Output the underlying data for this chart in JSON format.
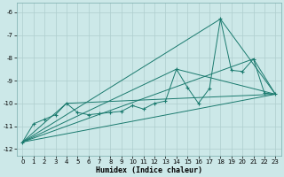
{
  "title": "",
  "xlabel": "Humidex (Indice chaleur)",
  "background_color": "#cce8e8",
  "grid_color": "#b0d4d4",
  "line_color": "#1a7a6e",
  "xlim": [
    -0.5,
    23.5
  ],
  "ylim": [
    -12.3,
    -5.6
  ],
  "yticks": [
    -12,
    -11,
    -10,
    -9,
    -8,
    -7,
    -6
  ],
  "xticks": [
    0,
    1,
    2,
    3,
    4,
    5,
    6,
    7,
    8,
    9,
    10,
    11,
    12,
    13,
    14,
    15,
    16,
    17,
    18,
    19,
    20,
    21,
    22,
    23
  ],
  "main_series": [
    [
      0,
      -11.7
    ],
    [
      1,
      -10.9
    ],
    [
      2,
      -10.7
    ],
    [
      3,
      -10.5
    ],
    [
      4,
      -10.0
    ],
    [
      5,
      -10.4
    ],
    [
      6,
      -10.5
    ],
    [
      7,
      -10.45
    ],
    [
      8,
      -10.4
    ],
    [
      9,
      -10.35
    ],
    [
      10,
      -10.1
    ],
    [
      11,
      -10.25
    ],
    [
      12,
      -10.0
    ],
    [
      13,
      -9.9
    ],
    [
      14,
      -8.5
    ],
    [
      15,
      -9.3
    ],
    [
      16,
      -10.0
    ],
    [
      17,
      -9.35
    ],
    [
      18,
      -6.3
    ],
    [
      19,
      -8.55
    ],
    [
      20,
      -8.6
    ],
    [
      21,
      -8.05
    ],
    [
      22,
      -9.55
    ],
    [
      23,
      -9.6
    ]
  ],
  "envelope_lines": [
    [
      [
        0,
        -11.7
      ],
      [
        23,
        -9.6
      ]
    ],
    [
      [
        0,
        -11.7
      ],
      [
        18,
        -6.3
      ],
      [
        23,
        -9.6
      ]
    ],
    [
      [
        0,
        -11.7
      ],
      [
        21,
        -8.05
      ],
      [
        23,
        -9.6
      ]
    ],
    [
      [
        0,
        -11.7
      ],
      [
        14,
        -8.5
      ],
      [
        23,
        -9.6
      ]
    ],
    [
      [
        0,
        -11.7
      ],
      [
        4,
        -10.0
      ],
      [
        23,
        -9.6
      ]
    ]
  ]
}
